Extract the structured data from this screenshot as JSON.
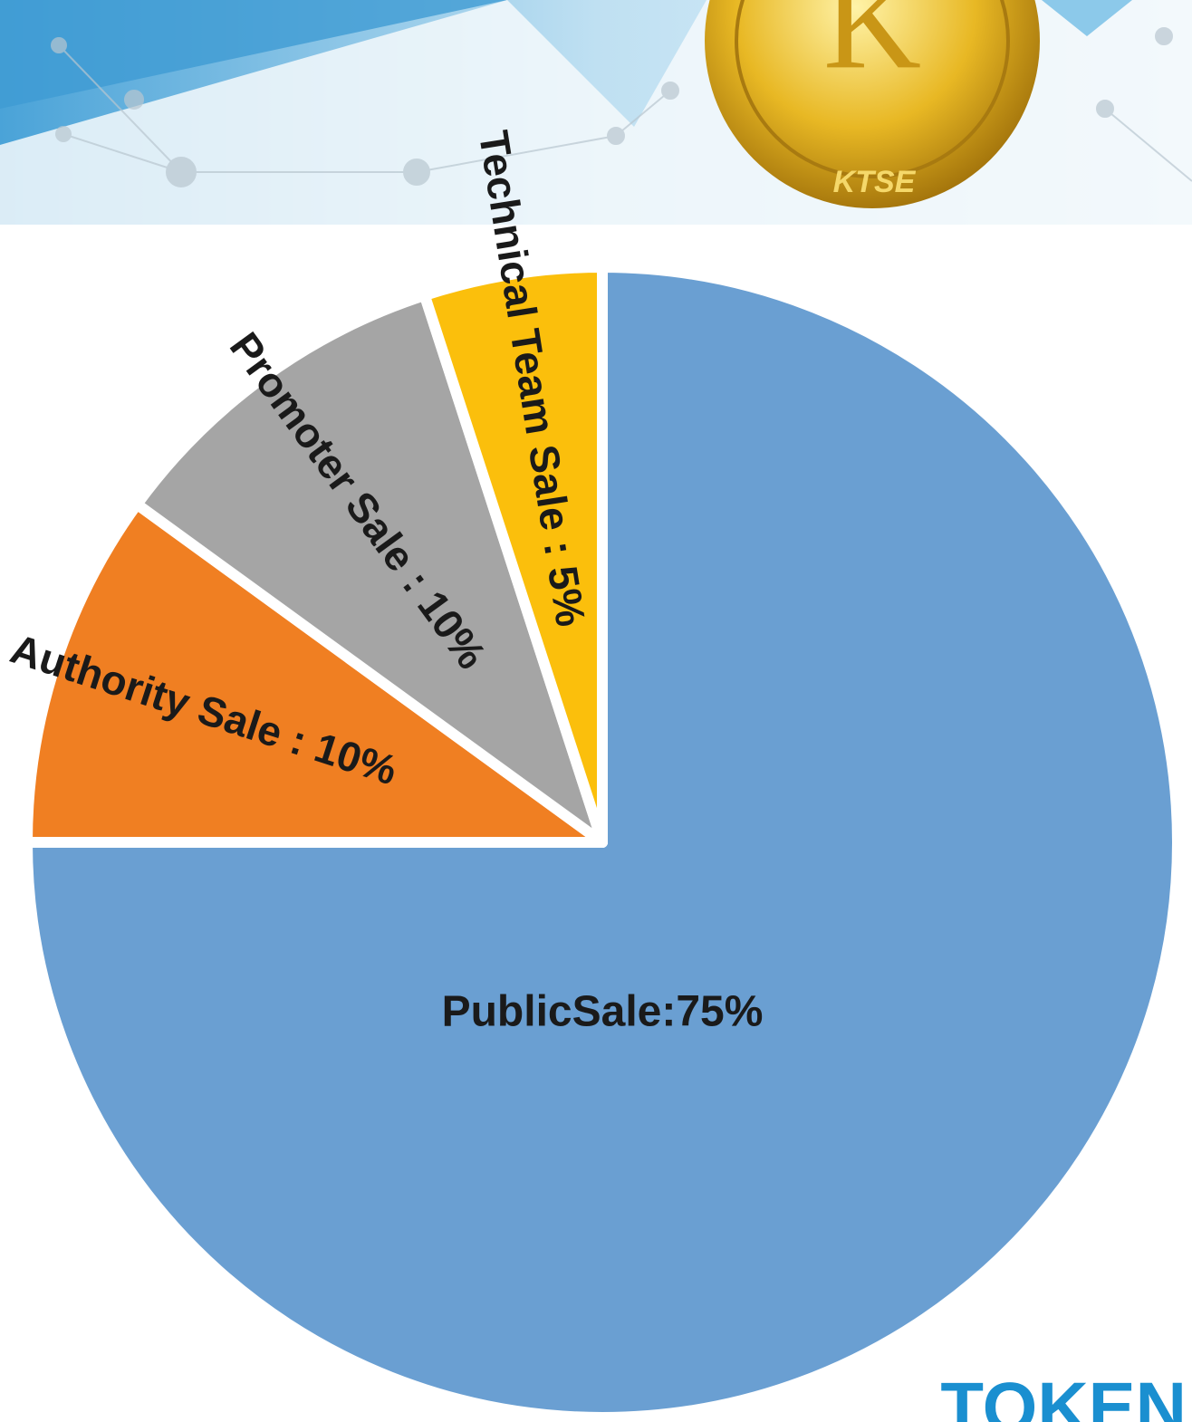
{
  "chart_data": {
    "type": "pie",
    "categories": [
      "PublicSale",
      "Authority Sale",
      "Promoter Sale",
      "Technical Team Sale"
    ],
    "values": [
      75,
      10,
      10,
      5
    ],
    "value_labels": [
      "PublicSale:75%",
      "Authority Sale : 10%",
      "Promoter Sale : 10%",
      "Technical Team Sale : 5%"
    ],
    "colors": [
      "#6a9fd2",
      "#f07f22",
      "#a5a5a5",
      "#fbbf0c"
    ],
    "coin_text": "KTSE",
    "brand": "TOKEN"
  }
}
